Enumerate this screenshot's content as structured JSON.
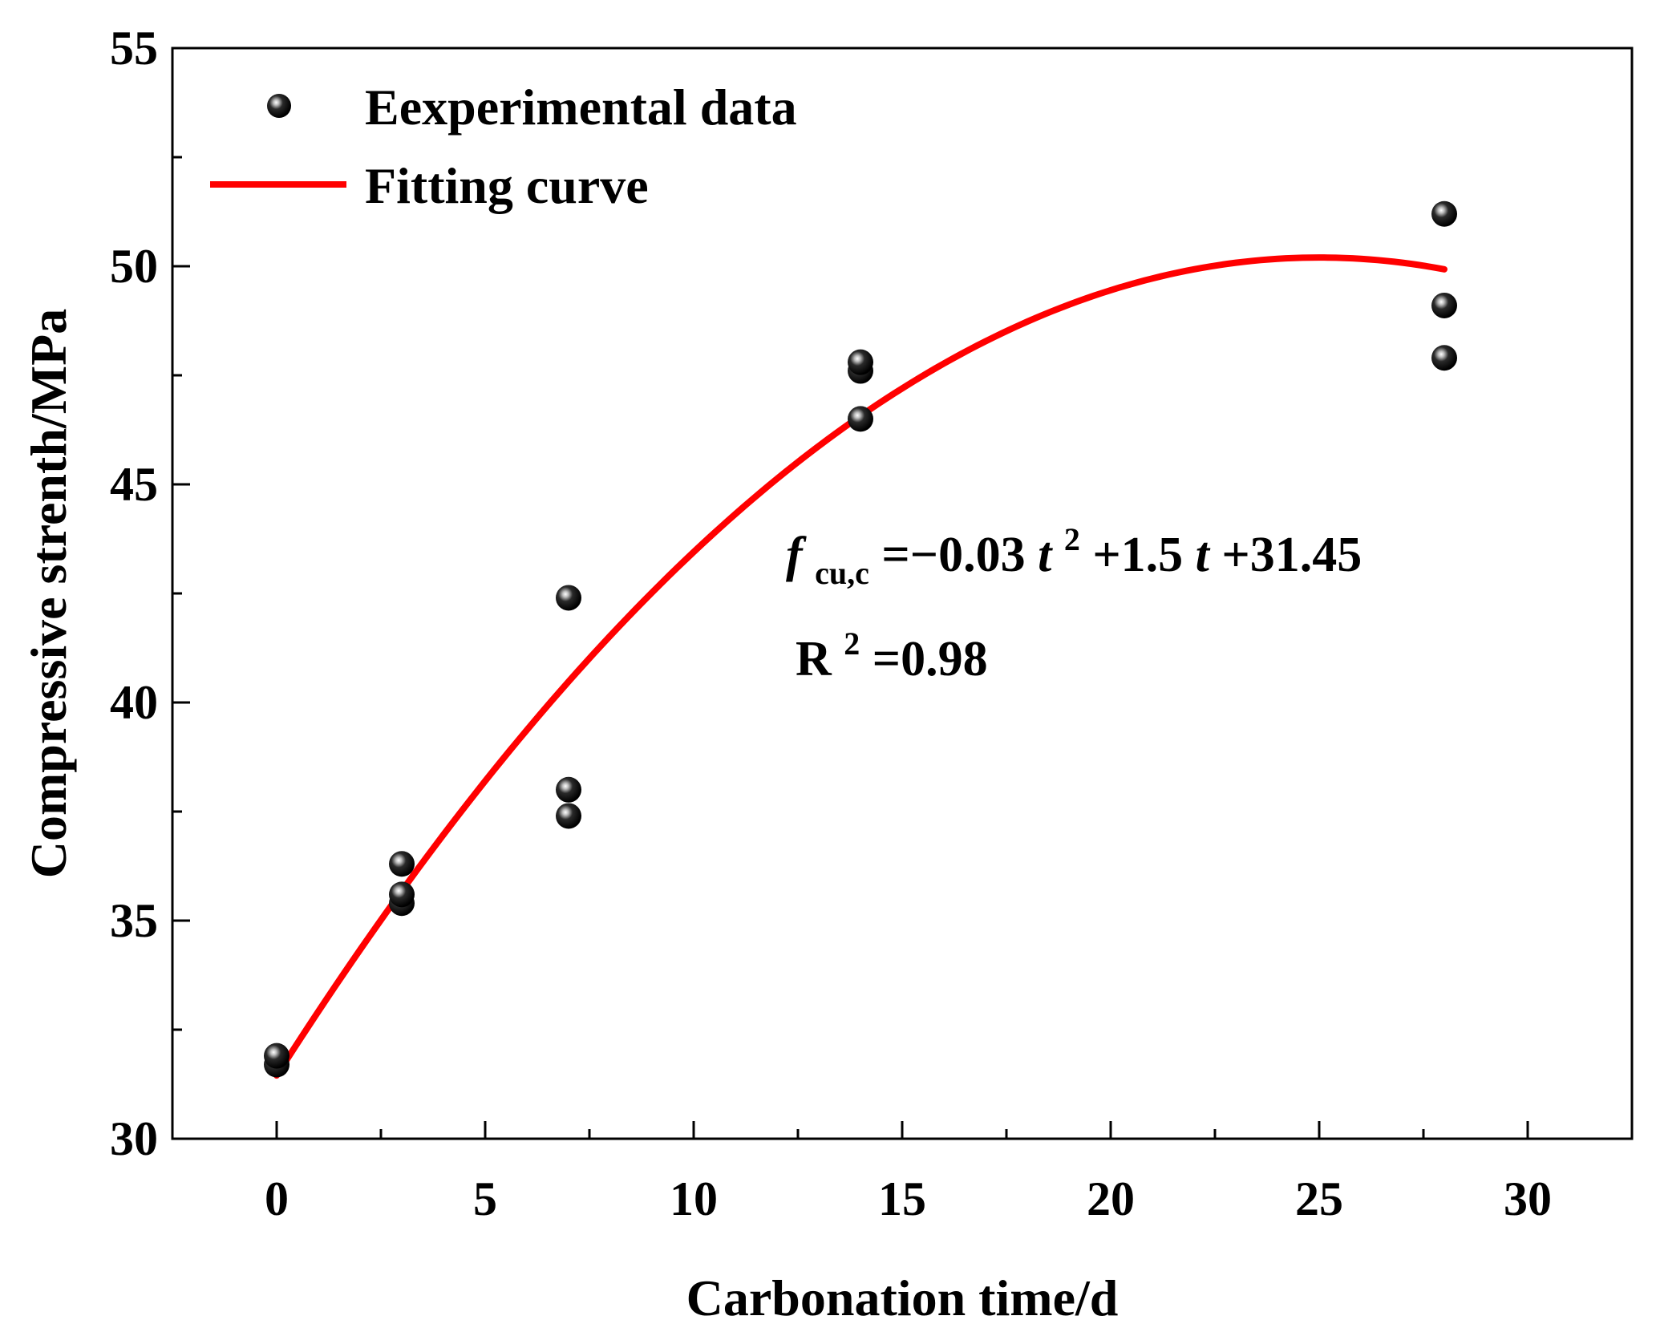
{
  "chart_data": {
    "type": "scatter",
    "xlabel": "Carbonation time/d",
    "ylabel": "Compressive strenth/MPa",
    "xlim": [
      -2.5,
      32.5
    ],
    "ylim": [
      30,
      55
    ],
    "xticks": [
      "0",
      "5",
      "10",
      "15",
      "20",
      "25",
      "30"
    ],
    "xtick_values": [
      0,
      5,
      10,
      15,
      20,
      25,
      30
    ],
    "yticks": [
      "30",
      "35",
      "40",
      "45",
      "50",
      "55"
    ],
    "ytick_values": [
      30,
      35,
      40,
      45,
      50,
      55
    ],
    "legend": {
      "placement": "top-left",
      "entries": [
        {
          "label": "Eexperimental data",
          "marker": "sphere"
        },
        {
          "label": "Fitting curve",
          "marker": "line"
        }
      ]
    },
    "series": [
      {
        "name": "Eexperimental data",
        "kind": "points",
        "x": [
          0,
          0,
          3,
          3,
          3,
          7,
          7,
          7,
          14,
          14,
          14,
          28,
          28,
          28
        ],
        "y": [
          31.7,
          31.9,
          35.4,
          35.6,
          36.3,
          37.4,
          38.0,
          42.4,
          46.5,
          47.6,
          47.8,
          47.9,
          49.1,
          51.2
        ]
      },
      {
        "name": "Fitting curve",
        "kind": "curve",
        "equation_coefficients": {
          "a": -0.03,
          "b": 1.5,
          "c": 31.45
        },
        "x_range": [
          0,
          28
        ],
        "color": "#ff0000"
      }
    ],
    "annotations": {
      "equation_symbol": "f",
      "equation_sub": "cu,c",
      "equation_part1": "=−0.03",
      "equation_t1": "t",
      "equation_sup": "2",
      "equation_part2": "+1.5",
      "equation_t2": "t",
      "equation_part3": "+31.45",
      "r2_prefix": "R",
      "r2_sup": "2",
      "r2_value": "=0.98"
    }
  }
}
